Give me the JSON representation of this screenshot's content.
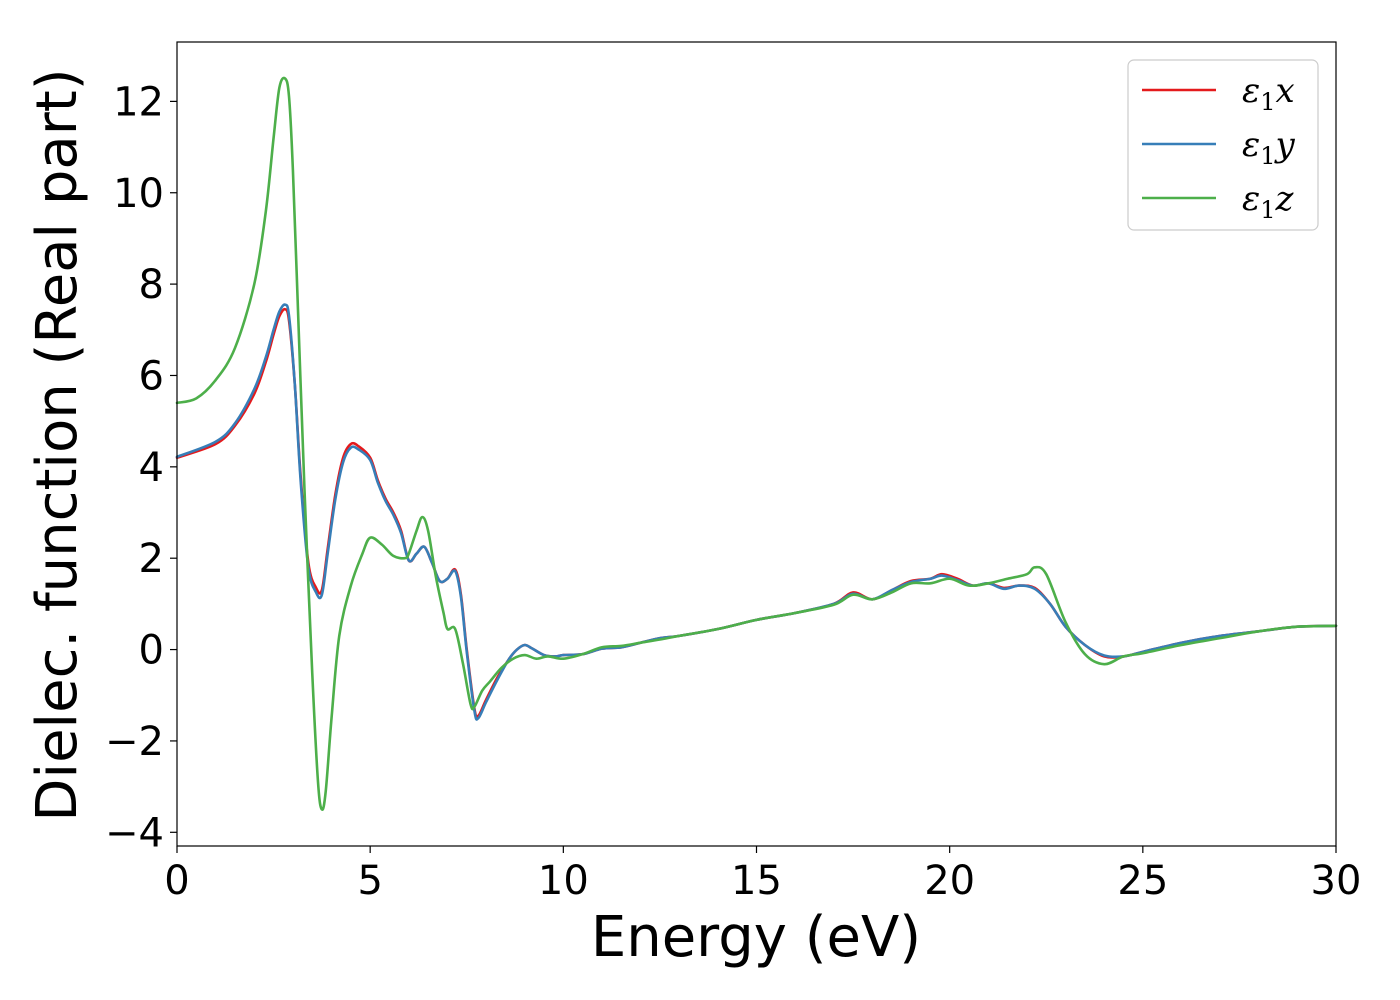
{
  "chart_data": {
    "type": "line",
    "xlabel": "Energy (eV)",
    "ylabel": "Dielec. function (Real part)",
    "xlim": [
      0,
      30
    ],
    "ylim": [
      -4.3,
      13.3
    ],
    "xticks": [
      0,
      5,
      10,
      15,
      20,
      25,
      30
    ],
    "xtick_labels": [
      "0",
      "5",
      "10",
      "15",
      "20",
      "25",
      "30"
    ],
    "yticks": [
      -4,
      -2,
      0,
      2,
      4,
      6,
      8,
      10,
      12
    ],
    "ytick_labels": [
      "−4",
      "−2",
      "0",
      "2",
      "4",
      "6",
      "8",
      "10",
      "12"
    ],
    "grid": false,
    "legend_position": "top-right",
    "series": [
      {
        "name": "ε₁x",
        "legend_main": "ε",
        "legend_sub": "1",
        "legend_tail": "x",
        "color": "#e41a1c",
        "x": [
          0,
          1,
          1.5,
          2,
          2.3,
          2.5,
          2.65,
          2.8,
          2.9,
          3.05,
          3.2,
          3.4,
          3.6,
          3.75,
          3.9,
          4.1,
          4.3,
          4.5,
          4.7,
          5,
          5.2,
          5.4,
          5.6,
          5.8,
          6,
          6.2,
          6.4,
          6.6,
          6.8,
          7,
          7.2,
          7.35,
          7.5,
          7.7,
          7.8,
          8,
          8.3,
          8.6,
          8.8,
          9,
          9.2,
          9.5,
          9.8,
          10,
          10.5,
          11,
          11.5,
          12,
          12.5,
          13,
          14,
          15,
          16,
          17,
          17.5,
          18,
          18.5,
          19,
          19.5,
          19.8,
          20.2,
          20.6,
          21,
          21.4,
          21.8,
          22.2,
          22.6,
          23,
          23.5,
          24,
          24.5,
          25,
          26,
          27,
          28,
          29,
          30
        ],
        "y": [
          4.2,
          4.5,
          4.9,
          5.6,
          6.3,
          6.9,
          7.3,
          7.45,
          7.2,
          5.8,
          3.8,
          1.9,
          1.35,
          1.3,
          2.2,
          3.4,
          4.2,
          4.5,
          4.45,
          4.2,
          3.7,
          3.3,
          3.0,
          2.6,
          1.95,
          2.1,
          2.25,
          1.9,
          1.5,
          1.55,
          1.75,
          1.2,
          0.0,
          -1.3,
          -1.45,
          -1.1,
          -0.6,
          -0.2,
          0.0,
          0.1,
          0.02,
          -0.12,
          -0.15,
          -0.12,
          -0.1,
          0.02,
          0.05,
          0.15,
          0.25,
          0.3,
          0.45,
          0.65,
          0.8,
          1.0,
          1.25,
          1.1,
          1.3,
          1.5,
          1.55,
          1.65,
          1.55,
          1.4,
          1.45,
          1.35,
          1.4,
          1.35,
          1.0,
          0.5,
          0.1,
          -0.15,
          -0.15,
          -0.05,
          0.15,
          0.3,
          0.4,
          0.5,
          0.52
        ]
      },
      {
        "name": "ε₁y",
        "legend_main": "ε",
        "legend_sub": "1",
        "legend_tail": "y",
        "color": "#377eb8",
        "x": [
          0,
          1,
          1.5,
          2,
          2.3,
          2.5,
          2.65,
          2.8,
          2.9,
          3.05,
          3.2,
          3.4,
          3.6,
          3.75,
          3.9,
          4.1,
          4.3,
          4.5,
          4.7,
          5,
          5.2,
          5.4,
          5.6,
          5.8,
          6,
          6.2,
          6.4,
          6.6,
          6.8,
          7,
          7.2,
          7.35,
          7.5,
          7.7,
          7.8,
          8,
          8.3,
          8.6,
          8.8,
          9,
          9.2,
          9.5,
          9.8,
          10,
          10.5,
          11,
          11.5,
          12,
          12.5,
          13,
          14,
          15,
          16,
          17,
          17.5,
          18,
          18.5,
          19,
          19.5,
          19.8,
          20.2,
          20.6,
          21,
          21.4,
          21.8,
          22.2,
          22.6,
          23,
          23.5,
          24,
          24.5,
          25,
          26,
          27,
          28,
          29,
          30
        ],
        "y": [
          4.22,
          4.55,
          4.95,
          5.7,
          6.4,
          7.0,
          7.4,
          7.55,
          7.3,
          5.8,
          3.7,
          1.8,
          1.25,
          1.2,
          2.1,
          3.3,
          4.1,
          4.42,
          4.38,
          4.15,
          3.65,
          3.25,
          2.95,
          2.55,
          1.95,
          2.1,
          2.25,
          1.9,
          1.5,
          1.55,
          1.72,
          1.15,
          -0.05,
          -1.35,
          -1.5,
          -1.15,
          -0.65,
          -0.2,
          0.0,
          0.1,
          0.02,
          -0.12,
          -0.15,
          -0.12,
          -0.1,
          0.02,
          0.05,
          0.15,
          0.25,
          0.3,
          0.45,
          0.65,
          0.8,
          1.0,
          1.22,
          1.1,
          1.3,
          1.48,
          1.55,
          1.62,
          1.52,
          1.4,
          1.45,
          1.33,
          1.4,
          1.33,
          1.0,
          0.5,
          0.1,
          -0.13,
          -0.15,
          -0.05,
          0.15,
          0.3,
          0.4,
          0.5,
          0.52
        ]
      },
      {
        "name": "ε₁z",
        "legend_main": "ε",
        "legend_sub": "1",
        "legend_tail": "z",
        "color": "#4daf4a",
        "x": [
          0,
          0.5,
          1,
          1.5,
          2,
          2.3,
          2.5,
          2.65,
          2.8,
          2.9,
          3.0,
          3.15,
          3.3,
          3.5,
          3.65,
          3.75,
          3.85,
          4.0,
          4.2,
          4.5,
          4.8,
          5.0,
          5.3,
          5.6,
          5.9,
          6.0,
          6.2,
          6.35,
          6.5,
          6.7,
          6.9,
          7.0,
          7.2,
          7.4,
          7.6,
          7.7,
          7.9,
          8.1,
          8.4,
          8.7,
          9,
          9.3,
          9.6,
          10,
          10.5,
          11,
          11.5,
          12,
          12.5,
          13,
          14,
          15,
          16,
          17,
          17.5,
          18,
          18.5,
          19,
          19.5,
          20,
          20.5,
          21,
          21.5,
          22,
          22.2,
          22.5,
          23,
          23.5,
          24,
          24.5,
          25,
          26,
          27,
          28,
          29,
          30
        ],
        "y": [
          5.4,
          5.5,
          5.9,
          6.6,
          8.0,
          9.6,
          11.2,
          12.3,
          12.5,
          12.1,
          10.5,
          7.0,
          3.5,
          -0.5,
          -2.9,
          -3.5,
          -3.1,
          -1.5,
          0.3,
          1.4,
          2.1,
          2.45,
          2.3,
          2.05,
          2.0,
          2.1,
          2.6,
          2.9,
          2.6,
          1.6,
          0.8,
          0.45,
          0.45,
          -0.3,
          -1.2,
          -1.25,
          -0.9,
          -0.7,
          -0.4,
          -0.2,
          -0.12,
          -0.2,
          -0.15,
          -0.2,
          -0.1,
          0.05,
          0.08,
          0.15,
          0.22,
          0.3,
          0.45,
          0.65,
          0.8,
          0.98,
          1.2,
          1.1,
          1.25,
          1.45,
          1.45,
          1.55,
          1.4,
          1.45,
          1.55,
          1.65,
          1.8,
          1.65,
          0.6,
          -0.1,
          -0.32,
          -0.15,
          -0.08,
          0.1,
          0.25,
          0.4,
          0.5,
          0.52
        ]
      }
    ]
  }
}
